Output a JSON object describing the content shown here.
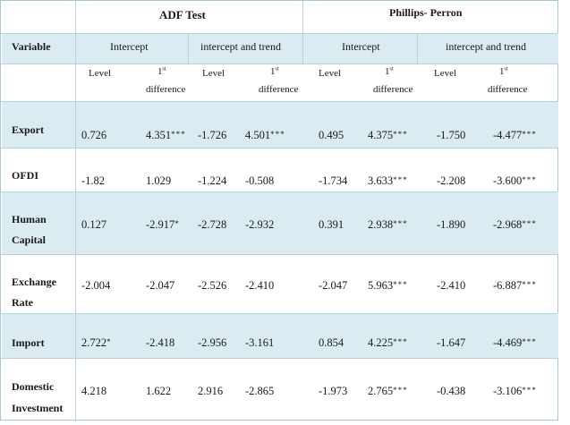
{
  "header": {
    "adf_title": "ADF Test",
    "pp_title": "Phillips- Perron",
    "variable_label": "Variable",
    "groups": [
      "Intercept",
      "intercept and trend",
      "Intercept",
      "intercept and trend"
    ],
    "level_label": "Level",
    "diff_sup_num": "1",
    "diff_sup": "st",
    "diff_label": "difference"
  },
  "rows": [
    {
      "name": [
        "Export"
      ],
      "values": [
        [
          "0.726",
          ""
        ],
        [
          "4.351",
          "***"
        ],
        [
          "-1.726",
          ""
        ],
        [
          "4.501",
          "***"
        ],
        [
          "0.495",
          ""
        ],
        [
          "4.375",
          "***"
        ],
        [
          "-1.750",
          ""
        ],
        [
          "-4.477",
          "***"
        ]
      ]
    },
    {
      "name": [
        "OFDI"
      ],
      "values": [
        [
          "-1.82",
          ""
        ],
        [
          "1.029",
          ""
        ],
        [
          "-1.224",
          ""
        ],
        [
          "-0.508",
          ""
        ],
        [
          "-1.734",
          ""
        ],
        [
          "3.633",
          "***"
        ],
        [
          "-2.208",
          ""
        ],
        [
          "-3.600",
          "***"
        ]
      ]
    },
    {
      "name": [
        "Human",
        "Capital"
      ],
      "values": [
        [
          "0.127",
          ""
        ],
        [
          "-2.917",
          "*"
        ],
        [
          "-2.728",
          ""
        ],
        [
          "-2.932",
          ""
        ],
        [
          "0.391",
          ""
        ],
        [
          "2.938",
          "***"
        ],
        [
          "-1.890",
          ""
        ],
        [
          "-2.968",
          "***"
        ]
      ]
    },
    {
      "name": [
        "Exchange",
        "Rate"
      ],
      "values": [
        [
          "-2.004",
          ""
        ],
        [
          "-2.047",
          ""
        ],
        [
          "-2.526",
          ""
        ],
        [
          "-2.410",
          ""
        ],
        [
          "-2.047",
          ""
        ],
        [
          "5.963",
          "***"
        ],
        [
          "-2.410",
          ""
        ],
        [
          "-6.887",
          "***"
        ]
      ]
    },
    {
      "name": [
        "Import"
      ],
      "values": [
        [
          "2.722",
          "*"
        ],
        [
          "-2.418",
          ""
        ],
        [
          "-2.956",
          ""
        ],
        [
          "-3.161",
          ""
        ],
        [
          "0.854",
          ""
        ],
        [
          "4.225",
          "***"
        ],
        [
          "-1.647",
          ""
        ],
        [
          "-4.469",
          "***"
        ]
      ]
    },
    {
      "name": [
        "Domestic",
        "Investment"
      ],
      "values": [
        [
          "4.218",
          ""
        ],
        [
          "1.622",
          ""
        ],
        [
          "2.916",
          ""
        ],
        [
          "-2.865",
          ""
        ],
        [
          "-1.973",
          ""
        ],
        [
          "2.765",
          "***"
        ],
        [
          "-0.438",
          ""
        ],
        [
          "-3.106",
          "***"
        ]
      ]
    }
  ]
}
